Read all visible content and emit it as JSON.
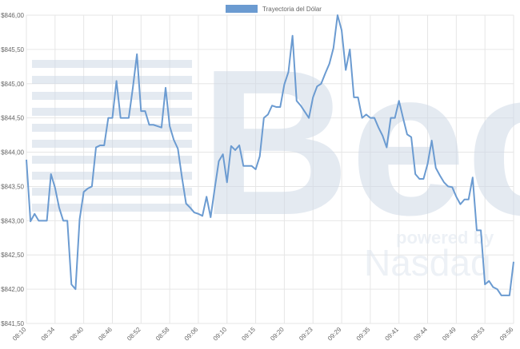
{
  "chart_data": {
    "type": "line",
    "categories": [
      "08:10",
      null,
      null,
      null,
      null,
      null,
      null,
      "08:34",
      null,
      null,
      null,
      null,
      null,
      null,
      "08:40",
      null,
      null,
      null,
      null,
      null,
      null,
      "08:46",
      null,
      null,
      null,
      null,
      null,
      null,
      "08:52",
      null,
      null,
      null,
      null,
      null,
      null,
      "08:58",
      null,
      null,
      null,
      null,
      null,
      null,
      "09:06",
      null,
      null,
      null,
      null,
      null,
      null,
      "09:10",
      null,
      null,
      null,
      null,
      null,
      null,
      "09:15",
      null,
      null,
      null,
      null,
      null,
      null,
      "09:20",
      null,
      null,
      null,
      null,
      null,
      null,
      "09:23",
      null,
      null,
      null,
      null,
      null,
      null,
      "09:29",
      null,
      null,
      null,
      null,
      null,
      null,
      "09:35",
      null,
      null,
      null,
      null,
      null,
      null,
      "09:41",
      null,
      null,
      null,
      null,
      null,
      null,
      "09:44",
      null,
      null,
      null,
      null,
      null,
      null,
      "09:49",
      null,
      null,
      null,
      null,
      null,
      null,
      "09:53",
      null,
      null,
      null,
      null,
      null,
      null,
      "09:56"
    ],
    "series": [
      {
        "name": "Trayectoria del Dólar",
        "color": "#6b9bd1",
        "values": [
          843.89,
          842.99,
          843.1,
          843.0,
          843.0,
          843.0,
          843.68,
          843.48,
          843.19,
          843.0,
          843.0,
          842.07,
          842.0,
          843.02,
          843.42,
          843.47,
          843.5,
          844.07,
          844.1,
          844.1,
          844.5,
          844.5,
          845.04,
          844.5,
          844.5,
          844.5,
          844.94,
          845.43,
          844.6,
          844.6,
          844.4,
          844.4,
          844.38,
          844.36,
          844.94,
          844.38,
          844.18,
          844.05,
          843.63,
          843.25,
          843.19,
          843.12,
          843.1,
          843.07,
          843.35,
          843.05,
          843.47,
          843.87,
          843.97,
          843.56,
          844.09,
          844.03,
          844.1,
          843.8,
          843.8,
          843.8,
          843.75,
          843.94,
          844.5,
          844.55,
          844.68,
          844.66,
          844.66,
          844.99,
          845.17,
          845.7,
          844.75,
          844.68,
          844.59,
          844.5,
          844.8,
          844.96,
          845.0,
          845.15,
          845.29,
          845.52,
          846.0,
          845.78,
          845.2,
          845.5,
          844.8,
          844.8,
          844.5,
          844.55,
          844.5,
          844.5,
          844.36,
          844.24,
          844.07,
          844.5,
          844.5,
          844.75,
          844.5,
          844.26,
          844.22,
          843.68,
          843.61,
          843.61,
          843.83,
          844.17,
          843.77,
          843.66,
          843.56,
          843.5,
          843.49,
          843.35,
          843.24,
          843.31,
          843.31,
          843.63,
          842.86,
          842.86,
          842.07,
          842.12,
          842.03,
          842.0,
          841.91,
          841.91,
          841.91,
          842.4
        ]
      }
    ],
    "ylim": [
      841.5,
      846.0
    ],
    "yticks": [
      {
        "value": 841.5,
        "label": "$841,50"
      },
      {
        "value": 842.0,
        "label": "$842,00"
      },
      {
        "value": 842.5,
        "label": "$842,50"
      },
      {
        "value": 843.0,
        "label": "$843,00"
      },
      {
        "value": 843.5,
        "label": "$843,50"
      },
      {
        "value": 844.0,
        "label": "$844,00"
      },
      {
        "value": 844.5,
        "label": "$844,50"
      },
      {
        "value": 845.0,
        "label": "$845,00"
      },
      {
        "value": 845.5,
        "label": "$845,50"
      },
      {
        "value": 846.0,
        "label": "$846,00"
      }
    ],
    "grid": true,
    "legend": "top",
    "watermark": {
      "logo": "Bec",
      "tagline": "powered by",
      "brand": "Nasdaq"
    }
  }
}
